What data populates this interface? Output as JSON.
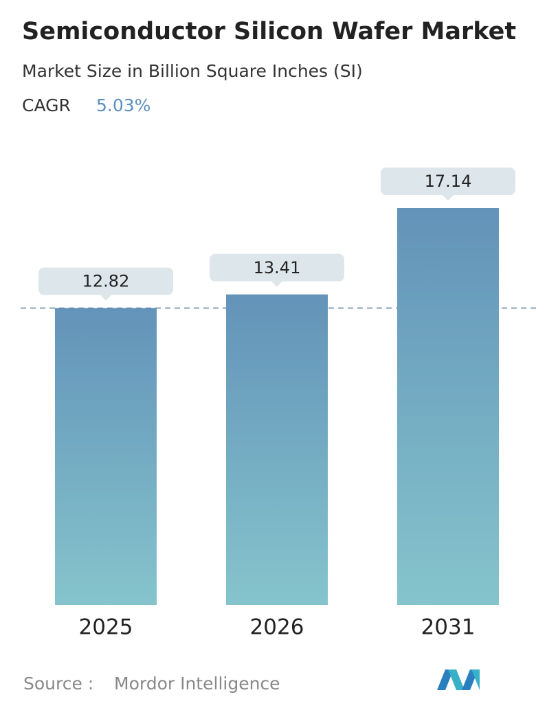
{
  "chart_data": {
    "type": "bar",
    "title": "Semiconductor Silicon Wafer Market",
    "subtitle": "Market Size in Billion Square Inches (SI)",
    "cagr_label": "CAGR",
    "cagr_value": "5.03%",
    "categories": [
      "2025",
      "2026",
      "2031"
    ],
    "values": [
      12.82,
      13.41,
      17.14
    ],
    "color_top": "#6393b9",
    "color_bottom": "#85c4cc",
    "source_label": "Source :",
    "source": "Mordor Intelligence"
  }
}
